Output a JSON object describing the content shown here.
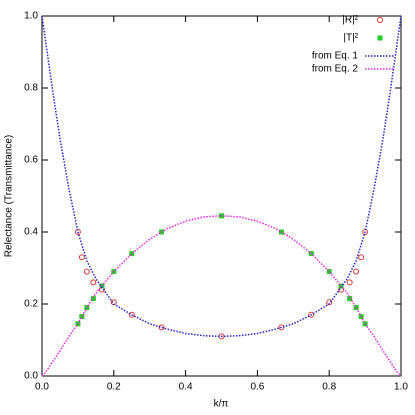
{
  "chart_data": {
    "type": "line",
    "x_label": "k/π",
    "y_label": "Relectance (Transmittance)",
    "xlim": [
      0,
      1
    ],
    "ylim": [
      0,
      1
    ],
    "xticks": [
      {
        "value": 0,
        "label": "0.0"
      },
      {
        "value": 0.2,
        "label": "0.2"
      },
      {
        "value": 0.4,
        "label": "0.4"
      },
      {
        "value": 0.6,
        "label": "0.6"
      },
      {
        "value": 0.8,
        "label": "0.8"
      },
      {
        "value": 1,
        "label": "1.0"
      }
    ],
    "yticks": [
      {
        "value": 0,
        "label": "0.0"
      },
      {
        "value": 0.2,
        "label": "0.2"
      },
      {
        "value": 0.4,
        "label": "0.4"
      },
      {
        "value": 0.6,
        "label": "0.6"
      },
      {
        "value": 0.8,
        "label": "0.8"
      },
      {
        "value": 1,
        "label": "1.0"
      }
    ],
    "legend": "top right",
    "series": [
      {
        "name": "|R|²",
        "style": "circles",
        "color": "#e03030",
        "x": [
          0.1,
          0.111,
          0.125,
          0.143,
          0.167,
          0.2,
          0.25,
          0.333,
          0.5,
          0.667,
          0.75,
          0.8,
          0.833,
          0.857,
          0.875,
          0.889,
          0.9
        ],
        "values": [
          0.4,
          0.33,
          0.29,
          0.26,
          0.24,
          0.205,
          0.17,
          0.135,
          0.11,
          0.135,
          0.17,
          0.205,
          0.24,
          0.26,
          0.29,
          0.33,
          0.4
        ]
      },
      {
        "name": "|T|²",
        "style": "squares",
        "color": "#22cc22",
        "x": [
          0.1,
          0.111,
          0.125,
          0.143,
          0.167,
          0.2,
          0.25,
          0.333,
          0.5,
          0.667,
          0.75,
          0.8,
          0.833,
          0.857,
          0.875,
          0.889,
          0.9
        ],
        "values": [
          0.145,
          0.165,
          0.19,
          0.215,
          0.25,
          0.29,
          0.34,
          0.4,
          0.445,
          0.4,
          0.34,
          0.29,
          0.25,
          0.215,
          0.19,
          0.165,
          0.145
        ]
      },
      {
        "name": "from Eq. 1",
        "style": "dotted",
        "color": "#2222cc",
        "x": [
          0,
          0.01,
          0.02,
          0.03,
          0.05,
          0.075,
          0.1,
          0.125,
          0.15,
          0.2,
          0.25,
          0.3,
          0.35,
          0.4,
          0.45,
          0.5,
          0.55,
          0.6,
          0.65,
          0.7,
          0.75,
          0.8,
          0.85,
          0.875,
          0.9,
          0.925,
          0.95,
          0.97,
          0.98,
          0.99,
          1
        ],
        "values": [
          1,
          0.93,
          0.86,
          0.79,
          0.66,
          0.52,
          0.4,
          0.32,
          0.27,
          0.2,
          0.17,
          0.145,
          0.13,
          0.118,
          0.112,
          0.11,
          0.112,
          0.118,
          0.13,
          0.145,
          0.17,
          0.2,
          0.27,
          0.32,
          0.4,
          0.52,
          0.66,
          0.79,
          0.86,
          0.93,
          1
        ]
      },
      {
        "name": "from Eq. 2",
        "style": "dotted",
        "color": "#ee22ee",
        "x": [
          0,
          0.01,
          0.02,
          0.03,
          0.05,
          0.075,
          0.1,
          0.125,
          0.15,
          0.2,
          0.25,
          0.3,
          0.35,
          0.4,
          0.45,
          0.5,
          0.55,
          0.6,
          0.65,
          0.7,
          0.75,
          0.8,
          0.85,
          0.875,
          0.9,
          0.925,
          0.95,
          0.97,
          0.98,
          0.99,
          1
        ],
        "values": [
          0,
          0.01,
          0.025,
          0.04,
          0.07,
          0.11,
          0.145,
          0.19,
          0.23,
          0.29,
          0.34,
          0.38,
          0.41,
          0.43,
          0.442,
          0.445,
          0.442,
          0.43,
          0.41,
          0.38,
          0.34,
          0.29,
          0.23,
          0.19,
          0.145,
          0.11,
          0.07,
          0.04,
          0.025,
          0.01,
          0
        ]
      }
    ]
  }
}
